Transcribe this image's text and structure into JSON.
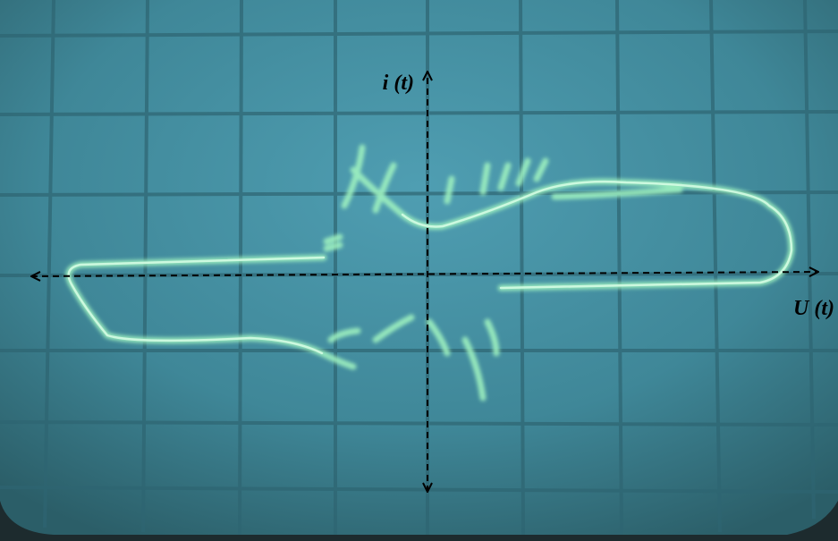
{
  "labels": {
    "current_axis": "i (t)",
    "voltage_axis": "U (t)"
  }
}
